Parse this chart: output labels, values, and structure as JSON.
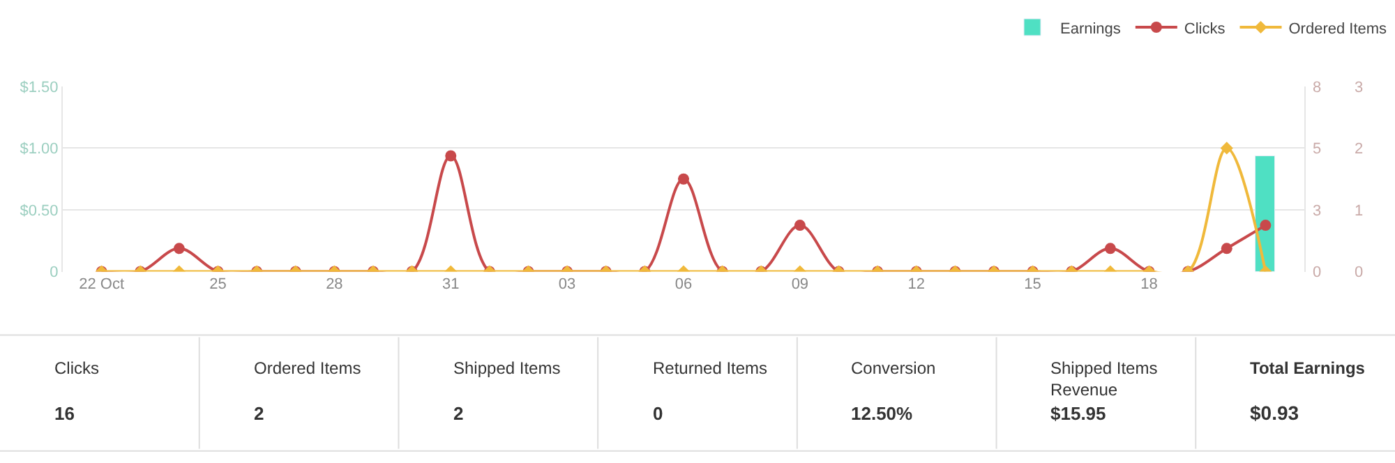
{
  "chart_data": {
    "type": "line",
    "x": [
      "--10-22",
      "--10-23",
      "--10-24",
      "--10-25",
      "--10-26",
      "--10-27",
      "--10-28",
      "--10-29",
      "--10-30",
      "--10-31",
      "--11-01",
      "--11-02",
      "--11-03",
      "--11-04",
      "--11-05",
      "--11-06",
      "--11-07",
      "--11-08",
      "--11-09",
      "--11-10",
      "--11-11",
      "--11-12",
      "--11-13",
      "--11-14",
      "--11-15",
      "--11-16",
      "--11-17",
      "--11-18",
      "--11-19",
      "--11-20",
      "--11-21"
    ],
    "series": [
      {
        "name": "Earnings",
        "type": "bar",
        "color": "#4fe0c3",
        "axis": "y",
        "values": [
          null,
          null,
          null,
          null,
          null,
          null,
          null,
          null,
          null,
          null,
          null,
          null,
          null,
          null,
          null,
          null,
          null,
          null,
          null,
          null,
          null,
          null,
          null,
          null,
          null,
          null,
          null,
          null,
          null,
          null,
          0.93
        ]
      },
      {
        "name": "Clicks",
        "color": "#c8494b",
        "axis": "y2",
        "marker": "circle",
        "values": [
          0,
          0,
          1,
          0,
          0,
          0,
          0,
          0,
          0,
          5,
          0,
          0,
          0,
          0,
          0,
          4,
          0,
          0,
          2,
          0,
          0,
          0,
          0,
          0,
          0,
          0,
          1,
          0,
          0,
          1,
          2
        ]
      },
      {
        "name": "Ordered Items",
        "type": "line",
        "color": "#f0b93b",
        "axis": "y3",
        "marker": "diamond",
        "values": [
          0,
          0,
          0,
          0,
          0,
          0,
          0,
          0,
          0,
          0,
          0,
          0,
          0,
          0,
          0,
          0,
          0,
          0,
          0,
          0,
          0,
          0,
          0,
          0,
          0,
          0,
          0,
          0,
          0,
          2,
          0
        ]
      }
    ],
    "xlim": [
      "--10-21",
      "--11-22"
    ],
    "xticks": [
      {
        "value": "--10-22",
        "label": "22 Oct"
      },
      {
        "value": "--10-25",
        "label": "25"
      },
      {
        "value": "--10-28",
        "label": "28"
      },
      {
        "value": "--10-31",
        "label": "31"
      },
      {
        "value": "--11-03",
        "label": "03"
      },
      {
        "value": "--11-06",
        "label": "06"
      },
      {
        "value": "--11-09",
        "label": "09"
      },
      {
        "value": "--11-12",
        "label": "12"
      },
      {
        "value": "--11-15",
        "label": "15"
      },
      {
        "value": "--11-18",
        "label": "18"
      }
    ],
    "ylim": [
      0,
      1.5
    ],
    "yticks": [
      {
        "value": 0,
        "label": "0"
      },
      {
        "value": 0.5,
        "label": "$0.50"
      },
      {
        "value": 1,
        "label": "$1.00"
      },
      {
        "value": 1.5,
        "label": "$1.50"
      }
    ],
    "y2lim": [
      0,
      8
    ],
    "y2ticks": [
      0,
      {
        "value": 2.667,
        "label": "3"
      },
      {
        "value": 5.333,
        "label": "5"
      },
      8
    ],
    "y3lim": [
      0,
      3
    ],
    "y3ticks": [
      0,
      1,
      2,
      3
    ],
    "grid": "y",
    "legend": "top right",
    "annotations": [
      "Clicks",
      "16",
      "Ordered Items",
      "2",
      "Shipped Items",
      "2",
      "Returned Items",
      "0",
      "Conversion",
      "12.50%",
      "Shipped Items Revenue",
      "$15.95",
      "Total Earnings",
      "$0.93"
    ]
  }
}
